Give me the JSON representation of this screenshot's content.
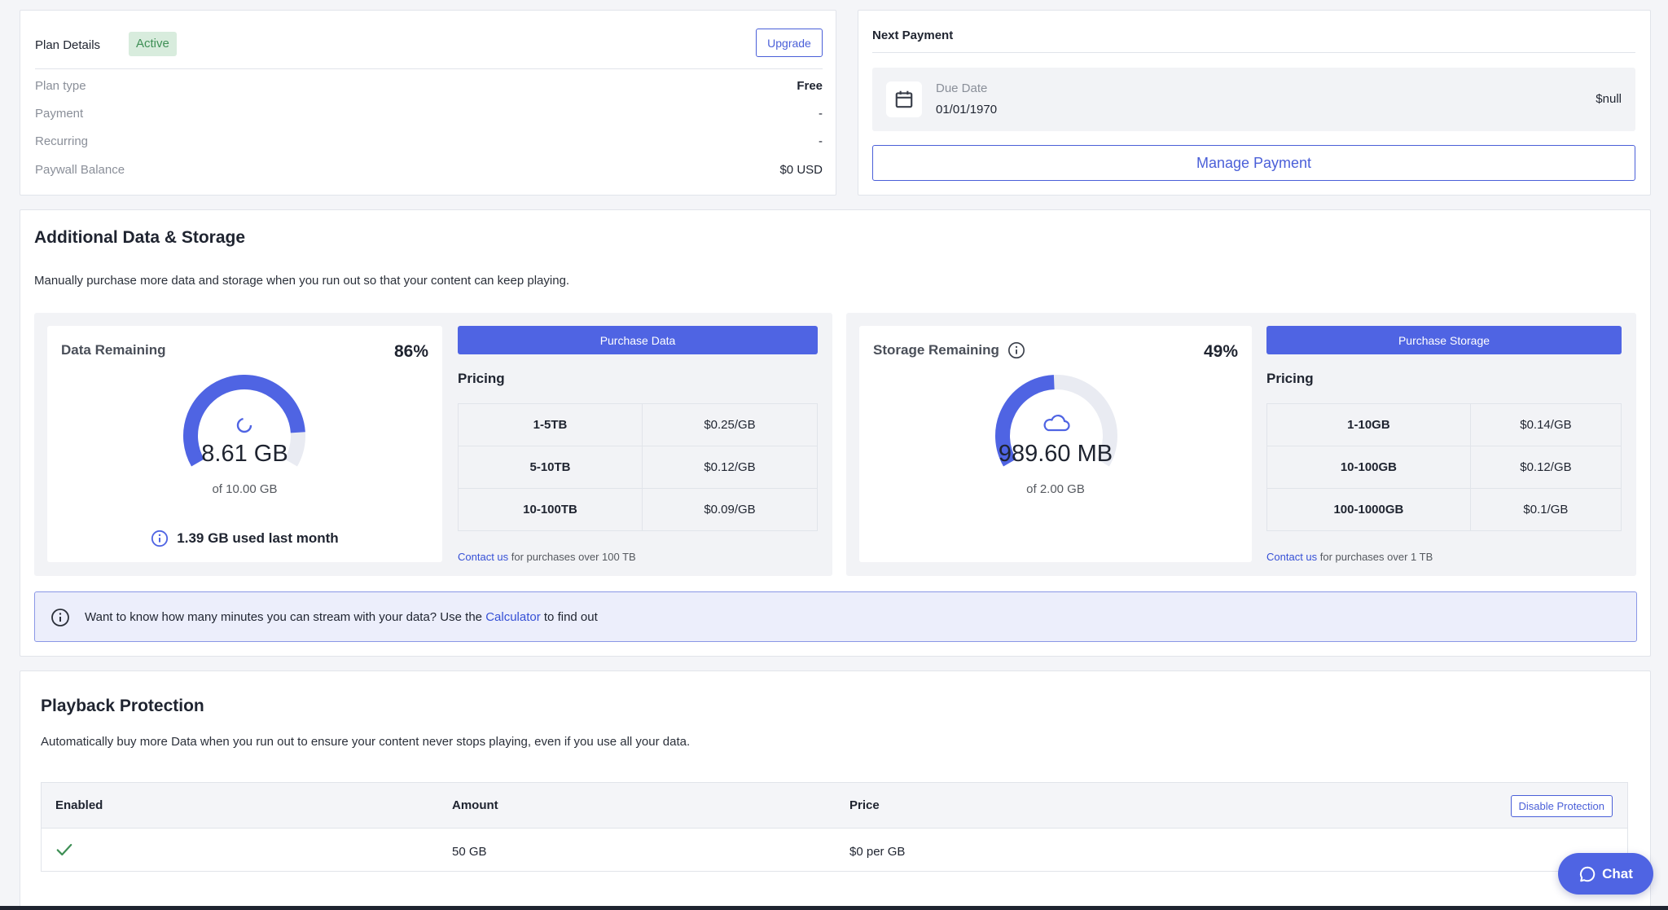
{
  "plan": {
    "title": "Plan Details",
    "status_badge": "Active",
    "upgrade_label": "Upgrade",
    "rows": [
      {
        "label": "Plan type",
        "value": "Free"
      },
      {
        "label": "Payment",
        "value": "-"
      },
      {
        "label": "Recurring",
        "value": "-"
      },
      {
        "label": "Paywall Balance",
        "value": "$0 USD"
      }
    ]
  },
  "payment": {
    "title": "Next Payment",
    "due_label": "Due Date",
    "due_date": "01/01/1970",
    "amount": "$null",
    "manage_label": "Manage Payment"
  },
  "additional": {
    "title": "Additional Data & Storage",
    "description": "Manually purchase more data and storage when you run out so that your content can keep playing.",
    "data": {
      "label": "Data Remaining",
      "percent_text": "86%",
      "percent": 0.86,
      "amount": "8.61 GB",
      "of_total": "of 10.00 GB",
      "usage_note": "1.39 GB used last month",
      "purchase_label": "Purchase Data",
      "pricing_label": "Pricing",
      "pricing": [
        {
          "tier": "1-5TB",
          "price": "$0.25/GB"
        },
        {
          "tier": "5-10TB",
          "price": "$0.12/GB"
        },
        {
          "tier": "10-100TB",
          "price": "$0.09/GB"
        }
      ],
      "contact_link": "Contact us",
      "contact_rest": " for purchases over 100 TB"
    },
    "storage": {
      "label": "Storage Remaining",
      "percent_text": "49%",
      "percent": 0.49,
      "amount": "989.60 MB",
      "of_total": "of 2.00 GB",
      "purchase_label": "Purchase Storage",
      "pricing_label": "Pricing",
      "pricing": [
        {
          "tier": "1-10GB",
          "price": "$0.14/GB"
        },
        {
          "tier": "10-100GB",
          "price": "$0.12/GB"
        },
        {
          "tier": "100-1000GB",
          "price": "$0.1/GB"
        }
      ],
      "contact_link": "Contact us",
      "contact_rest": " for purchases over 1 TB"
    },
    "banner": {
      "text_before": "Want to know how many minutes you can stream with your data? Use the ",
      "link": "Calculator",
      "text_after": " to find out"
    }
  },
  "playback": {
    "title": "Playback Protection",
    "description": "Automatically buy more Data when you run out to ensure your content never stops playing, even if you use all your data.",
    "columns": [
      "Enabled",
      "Amount",
      "Price"
    ],
    "disable_label": "Disable Protection",
    "row": {
      "amount": "50 GB",
      "price": "$0 per GB"
    }
  },
  "chat": {
    "label": "Chat"
  },
  "colors": {
    "accent": "#4f64e3",
    "track": "#e9ebf2",
    "success": "#3e8f55"
  },
  "icons": [
    "calendar-icon",
    "loading-spinner-icon",
    "cloud-icon",
    "info-icon",
    "checkmark-icon",
    "chat-bubble-icon"
  ]
}
